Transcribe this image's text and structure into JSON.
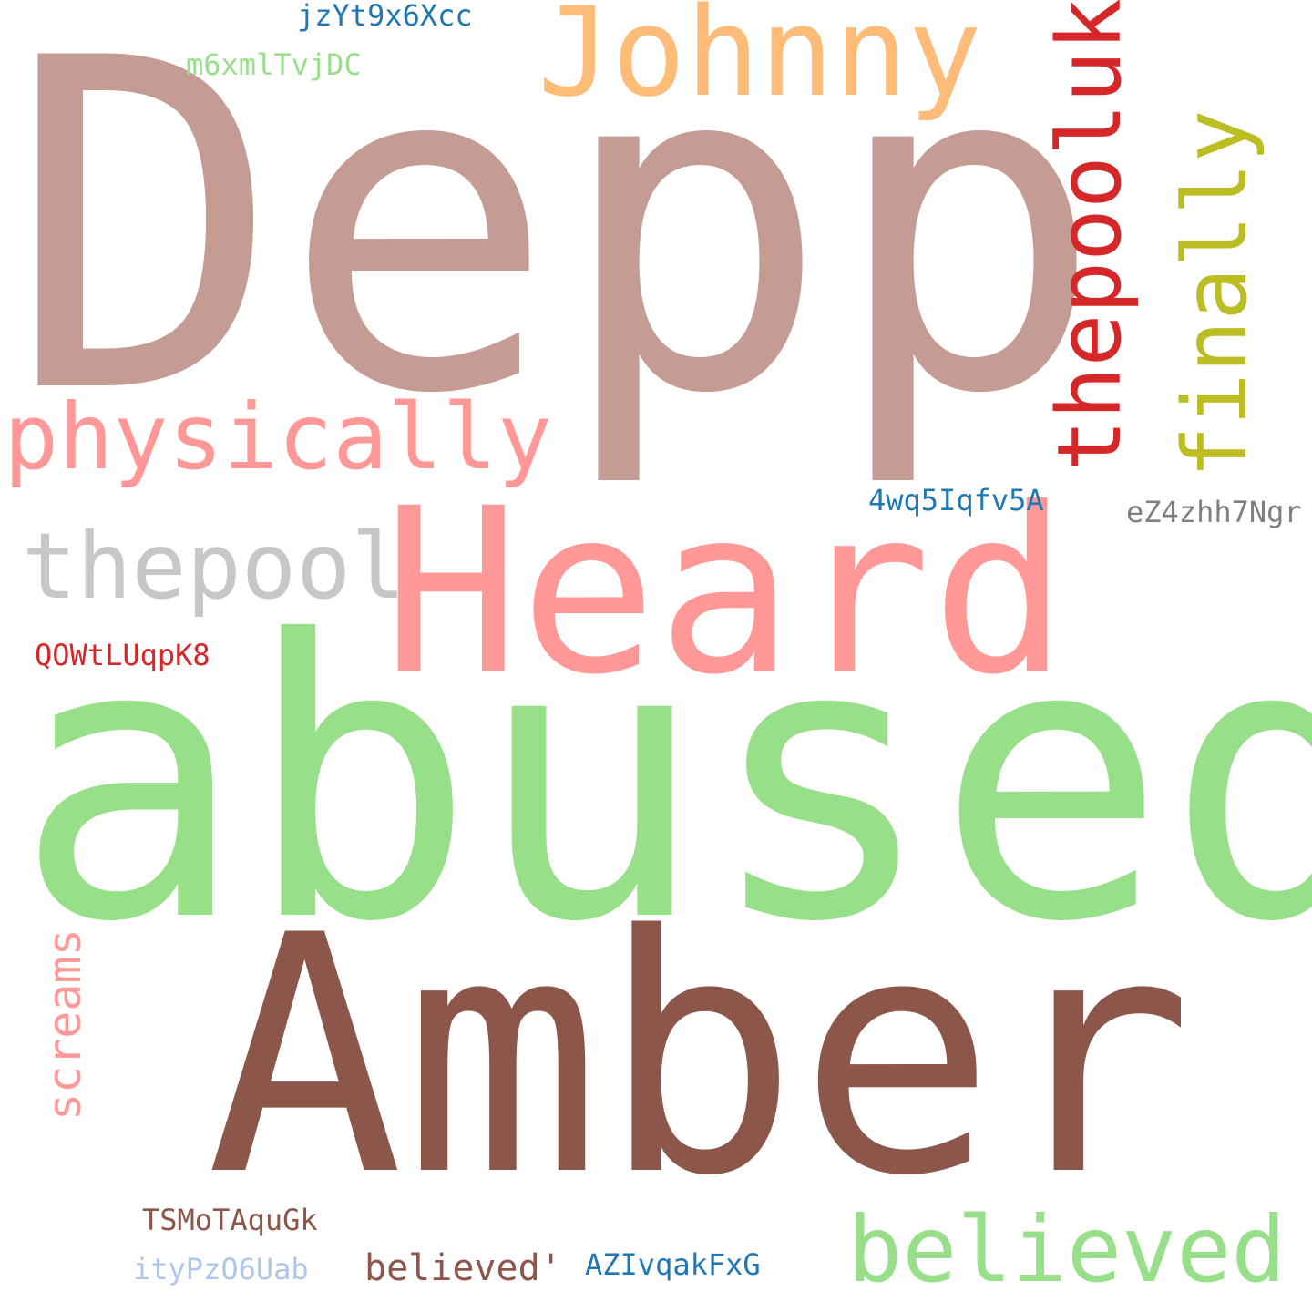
{
  "wordcloud": {
    "background": "#ffffff",
    "words": {
      "depp": {
        "text": "Depp",
        "color": "#c49c94"
      },
      "abused": {
        "text": "abused",
        "color": "#98df8a"
      },
      "amber": {
        "text": "Amber",
        "color": "#8c564b"
      },
      "heard": {
        "text": "Heard",
        "color": "#ff9896"
      },
      "johnny": {
        "text": "Johnny",
        "color": "#ffbb78"
      },
      "physically": {
        "text": "physically",
        "color": "#ff9896"
      },
      "thepool": {
        "text": "thepool",
        "color": "#c7c7c7"
      },
      "believed": {
        "text": "believed",
        "color": "#98df8a"
      },
      "thepooluk": {
        "text": "thepooluk",
        "color": "#d62728"
      },
      "finally": {
        "text": "finally",
        "color": "#bcbd22"
      },
      "screams": {
        "text": "screams",
        "color": "#ff9896"
      },
      "believed_q": {
        "text": "believed'",
        "color": "#8c564b"
      },
      "azivqakfxg": {
        "text": "AZIvqakFxG",
        "color": "#1f77b4"
      },
      "itypzo6uab": {
        "text": "ityPzO6Uab",
        "color": "#aec7e8"
      },
      "tsmotaqugk": {
        "text": "TSMoTAquGk",
        "color": "#8c564b"
      },
      "qowtluqpk8": {
        "text": "QOWtLUqpK8",
        "color": "#d62728"
      },
      "4wq5iqfv5a": {
        "text": "4wq5Iqfv5A",
        "color": "#1f77b4"
      },
      "ez4zhh7ngr": {
        "text": "eZ4zhh7Ngr",
        "color": "#7f7f7f"
      },
      "jzyt9x6xcc": {
        "text": "jzYt9x6Xcc",
        "color": "#1f77b4"
      },
      "m6xmltvjdc": {
        "text": "m6xmlTvjDC",
        "color": "#98df8a"
      }
    }
  }
}
